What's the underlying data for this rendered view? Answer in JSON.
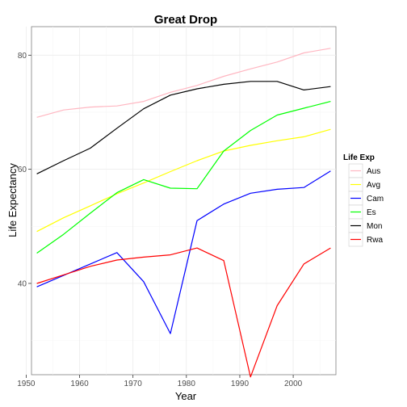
{
  "chart_data": {
    "type": "line",
    "title": "Great Drop",
    "xlabel": "Year",
    "ylabel": "Life Expectancy",
    "xlim": [
      1951,
      2008
    ],
    "ylim": [
      24,
      85
    ],
    "xticks": [
      1950,
      1960,
      1970,
      1980,
      1990,
      2000
    ],
    "yticks": [
      40,
      60,
      80
    ],
    "grid": true,
    "legend": {
      "title": "Life Exp",
      "position": "right"
    },
    "x": [
      1952,
      1957,
      1962,
      1967,
      1972,
      1977,
      1982,
      1987,
      1992,
      1997,
      2002,
      2007
    ],
    "series": [
      {
        "name": "Aus",
        "color": "#ffb6c1",
        "values": [
          69.1,
          70.4,
          70.9,
          71.1,
          71.9,
          73.5,
          74.7,
          76.3,
          77.6,
          78.8,
          80.4,
          81.2
        ]
      },
      {
        "name": "Avg",
        "color": "#ffff00",
        "values": [
          49.1,
          51.5,
          53.6,
          55.7,
          57.6,
          59.6,
          61.5,
          63.2,
          64.2,
          65.0,
          65.7,
          67.0
        ]
      },
      {
        "name": "Cam",
        "color": "#0000ff",
        "values": [
          39.4,
          41.4,
          43.4,
          45.4,
          40.3,
          31.2,
          51.0,
          53.9,
          55.8,
          56.5,
          56.8,
          59.7
        ]
      },
      {
        "name": "Es",
        "color": "#00ff00",
        "values": [
          45.3,
          48.6,
          52.3,
          55.9,
          58.2,
          56.7,
          56.6,
          63.2,
          66.8,
          69.5,
          70.7,
          71.9
        ]
      },
      {
        "name": "Mon",
        "color": "#000000",
        "values": [
          59.2,
          61.5,
          63.7,
          67.2,
          70.6,
          73.0,
          74.1,
          74.9,
          75.4,
          75.4,
          73.9,
          74.5
        ]
      },
      {
        "name": "Rwa",
        "color": "#ff0000",
        "values": [
          40.0,
          41.5,
          43.0,
          44.1,
          44.6,
          45.0,
          46.2,
          44.0,
          23.6,
          36.1,
          43.4,
          46.2
        ]
      }
    ]
  }
}
